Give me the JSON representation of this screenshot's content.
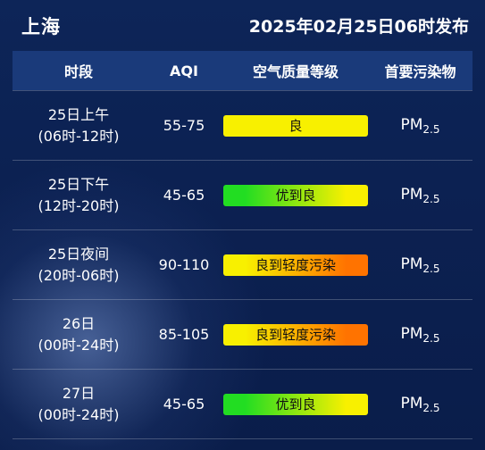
{
  "header": {
    "city": "上海",
    "publish_time": "2025年02月25日06时发布"
  },
  "table": {
    "columns": [
      "时段",
      "AQI",
      "空气质量等级",
      "首要污染物"
    ],
    "rows": [
      {
        "day": "25日上午",
        "hours": "(06时-12时)",
        "aqi": "55-75",
        "level": "良",
        "level_colors": [
          "#f8f000",
          "#f8f000"
        ],
        "pollutant": "PM",
        "pollutant_sub": "2.5"
      },
      {
        "day": "25日下午",
        "hours": "(12时-20时)",
        "aqi": "45-65",
        "level": "优到良",
        "level_colors": [
          "#22dd22",
          "#f8f000"
        ],
        "pollutant": "PM",
        "pollutant_sub": "2.5"
      },
      {
        "day": "25日夜间",
        "hours": "(20时-06时)",
        "aqi": "90-110",
        "level": "良到轻度污染",
        "level_colors": [
          "#f8f000",
          "#ff7300"
        ],
        "pollutant": "PM",
        "pollutant_sub": "2.5"
      },
      {
        "day": "26日",
        "hours": "(00时-24时)",
        "aqi": "85-105",
        "level": "良到轻度污染",
        "level_colors": [
          "#f8f000",
          "#ff7300"
        ],
        "pollutant": "PM",
        "pollutant_sub": "2.5"
      },
      {
        "day": "27日",
        "hours": "(00时-24时)",
        "aqi": "45-65",
        "level": "优到良",
        "level_colors": [
          "#22dd22",
          "#f8f000"
        ],
        "pollutant": "PM",
        "pollutant_sub": "2.5"
      }
    ]
  }
}
